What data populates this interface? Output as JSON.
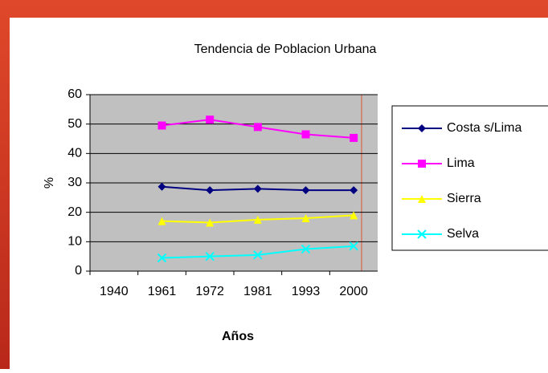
{
  "chart_data": {
    "type": "line",
    "title": "Tendencia de Poblacion Urbana",
    "x_label": "Años",
    "y_label": "%",
    "categories": [
      "1940",
      "1961",
      "1972",
      "1981",
      "1993",
      "2000"
    ],
    "series": [
      {
        "name": "Costa s/Lima",
        "color": "#000080",
        "marker": "diamond",
        "values": [
          null,
          28.7,
          27.5,
          28,
          27.5,
          27.5
        ]
      },
      {
        "name": "Lima",
        "color": "#ff00ff",
        "marker": "square",
        "values": [
          null,
          49.5,
          51.5,
          49,
          46.5,
          45.3
        ]
      },
      {
        "name": "Sierra",
        "color": "#ffff00",
        "marker": "triangle",
        "values": [
          null,
          17,
          16.5,
          17.5,
          18,
          19
        ]
      },
      {
        "name": "Selva",
        "color": "#00ffff",
        "marker": "x",
        "values": [
          null,
          4.5,
          5,
          5.5,
          7.5,
          8.5
        ]
      }
    ],
    "ylim": [
      0,
      60
    ],
    "yticks": [
      0,
      10,
      20,
      30,
      40,
      50,
      60
    ],
    "grid": true,
    "legend": "right"
  }
}
